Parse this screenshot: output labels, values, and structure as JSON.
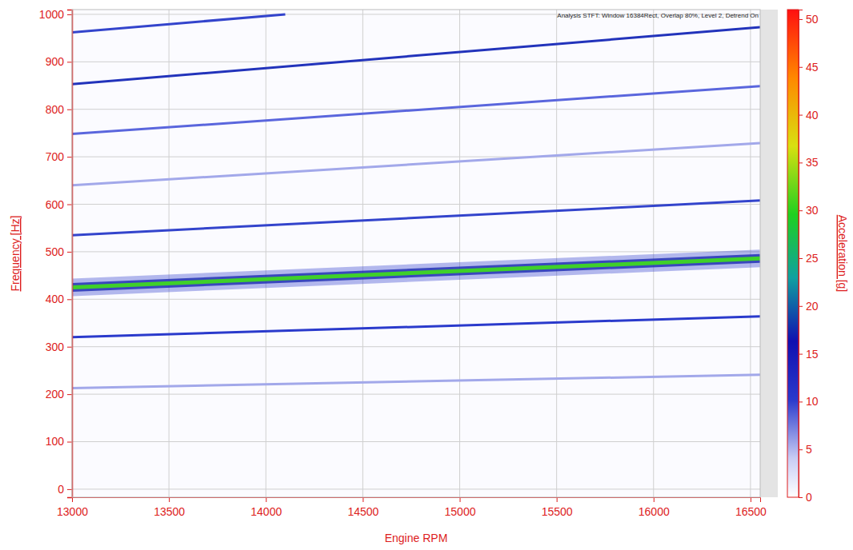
{
  "chart_data": {
    "type": "spectrogram",
    "title": "Analysis STFT: Window 16384Rect, Overlap 80%, Level 2, Detrend On",
    "x_label": "Engine RPM",
    "y_label": "Frequency [Hz]",
    "xlim": [
      13000,
      16550
    ],
    "xticks": [
      13000,
      13500,
      14000,
      14500,
      15000,
      15500,
      16000,
      16500
    ],
    "ylim": [
      -17,
      1010
    ],
    "yticks": [
      0,
      100,
      200,
      300,
      400,
      500,
      600,
      700,
      800,
      900,
      1000
    ],
    "grid": true,
    "series": [
      {
        "color": "#2a3acc",
        "x": [
          13000,
          16550
        ],
        "values": [
          320,
          364
        ]
      },
      {
        "color": "#a2a8ea",
        "x": [
          13000,
          16550
        ],
        "values": [
          213,
          241
        ]
      },
      {
        "color": "#3fd02a",
        "x": [
          13000,
          16550
        ],
        "values": [
          425,
          486
        ]
      },
      {
        "color": "#3344cc",
        "x": [
          13000,
          16550
        ],
        "values": [
          535,
          608
        ]
      },
      {
        "color": "#a2a8ea",
        "x": [
          13000,
          16550
        ],
        "values": [
          640,
          729
        ]
      },
      {
        "color": "#5a66dd",
        "x": [
          13000,
          16550
        ],
        "values": [
          748,
          849
        ]
      },
      {
        "color": "#2233bb",
        "x": [
          13000,
          16550
        ],
        "values": [
          853,
          973
        ]
      },
      {
        "color": "#3344cc",
        "x": [
          13000,
          14100
        ],
        "values": [
          962,
          1000
        ]
      }
    ],
    "colorbar": {
      "label": "Acceleration [g]",
      "range": [
        0,
        51
      ],
      "ticks": [
        0,
        5,
        10,
        15,
        20,
        25,
        30,
        35,
        40,
        45,
        50
      ]
    }
  }
}
